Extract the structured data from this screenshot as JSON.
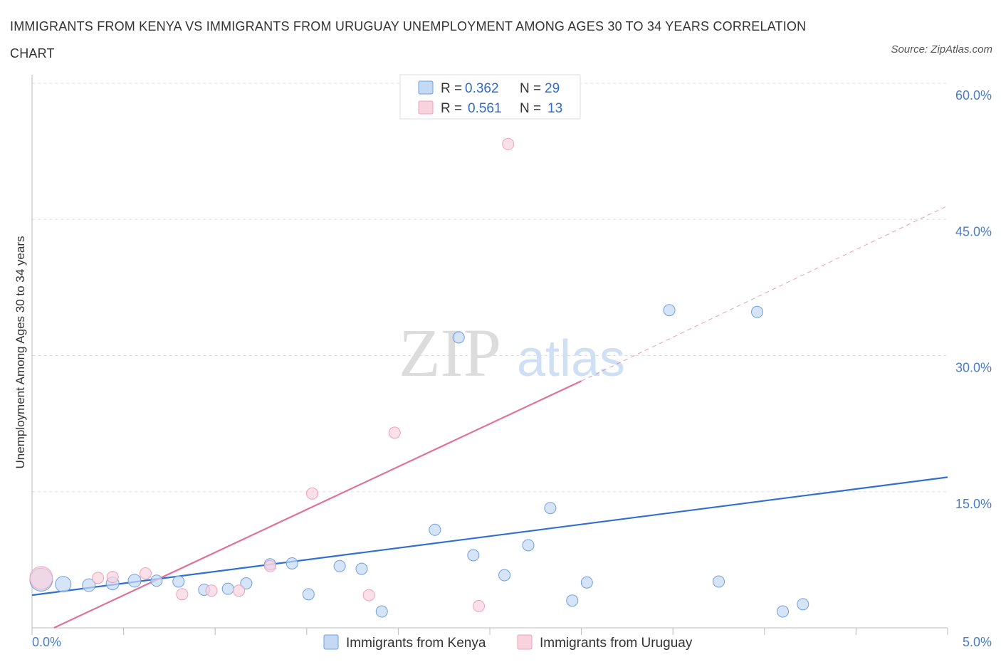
{
  "title": "IMMIGRANTS FROM KENYA VS IMMIGRANTS FROM URUGUAY UNEMPLOYMENT AMONG AGES 30 TO 34 YEARS CORRELATION CHART",
  "source": "Source: ZipAtlas.com",
  "watermark": {
    "zip": "ZIP",
    "atlas": "atlas"
  },
  "chart_data": {
    "type": "scatter",
    "title": "IMMIGRANTS FROM KENYA VS IMMIGRANTS FROM URUGUAY UNEMPLOYMENT AMONG AGES 30 TO 34 YEARS CORRELATION CHART",
    "xlabel": "",
    "ylabel": "Unemployment Among Ages 30 to 34 years",
    "xlim": [
      0,
      5
    ],
    "ylim": [
      0,
      60
    ],
    "x_tick_labels": {
      "min": "0.0%",
      "max": "5.0%"
    },
    "y_ticks": [
      15,
      30,
      45,
      60
    ],
    "y_tick_labels": [
      "15.0%",
      "30.0%",
      "45.0%",
      "60.0%"
    ],
    "grid": true,
    "legend_position": "top-center",
    "series": [
      {
        "name": "Immigrants from Kenya",
        "color": "#6f9fe0",
        "fill": "#c5d9f5",
        "line_color": "#2f6fd0",
        "R": "0.362",
        "N": "29",
        "trend": {
          "x0": 0,
          "y0": 3.6,
          "x1": 5,
          "y1": 16.6,
          "style": "solid"
        },
        "points": [
          {
            "x": 0.05,
            "y": 5.3,
            "r": 16
          },
          {
            "x": 0.17,
            "y": 4.8,
            "r": 11
          },
          {
            "x": 0.31,
            "y": 4.7,
            "r": 9
          },
          {
            "x": 0.44,
            "y": 4.9,
            "r": 9
          },
          {
            "x": 0.56,
            "y": 5.2,
            "r": 9
          },
          {
            "x": 0.68,
            "y": 5.2,
            "r": 8
          },
          {
            "x": 0.8,
            "y": 5.1,
            "r": 8
          },
          {
            "x": 0.94,
            "y": 4.2,
            "r": 8
          },
          {
            "x": 1.07,
            "y": 4.3,
            "r": 8
          },
          {
            "x": 1.17,
            "y": 4.9,
            "r": 8
          },
          {
            "x": 1.3,
            "y": 7.0,
            "r": 8
          },
          {
            "x": 1.42,
            "y": 7.1,
            "r": 8
          },
          {
            "x": 1.51,
            "y": 3.7,
            "r": 8
          },
          {
            "x": 1.68,
            "y": 6.8,
            "r": 8
          },
          {
            "x": 1.8,
            "y": 6.5,
            "r": 8
          },
          {
            "x": 1.91,
            "y": 1.8,
            "r": 8
          },
          {
            "x": 2.2,
            "y": 10.8,
            "r": 8
          },
          {
            "x": 2.33,
            "y": 32.0,
            "r": 8
          },
          {
            "x": 2.41,
            "y": 8.0,
            "r": 8
          },
          {
            "x": 2.58,
            "y": 5.8,
            "r": 8
          },
          {
            "x": 2.71,
            "y": 9.1,
            "r": 8
          },
          {
            "x": 2.83,
            "y": 13.2,
            "r": 8
          },
          {
            "x": 2.95,
            "y": 3.0,
            "r": 8
          },
          {
            "x": 3.03,
            "y": 5.0,
            "r": 8
          },
          {
            "x": 3.48,
            "y": 35.0,
            "r": 8
          },
          {
            "x": 3.75,
            "y": 5.1,
            "r": 8
          },
          {
            "x": 3.96,
            "y": 34.8,
            "r": 8
          },
          {
            "x": 4.1,
            "y": 1.8,
            "r": 8
          },
          {
            "x": 4.21,
            "y": 2.6,
            "r": 8
          }
        ]
      },
      {
        "name": "Immigrants from Uruguay",
        "color": "#f0a0b8",
        "fill": "#f8d3de",
        "line_color": "#e0719a",
        "R": "0.561",
        "N": "13",
        "trend": {
          "x0": 0.12,
          "y0": 0,
          "x1": 3.0,
          "y1": 27.2,
          "style": "solid",
          "dash_to": {
            "x": 5,
            "y": 46.5
          }
        },
        "points": [
          {
            "x": 0.05,
            "y": 5.5,
            "r": 16
          },
          {
            "x": 0.36,
            "y": 5.5,
            "r": 8
          },
          {
            "x": 0.44,
            "y": 5.6,
            "r": 8
          },
          {
            "x": 0.62,
            "y": 6.0,
            "r": 8
          },
          {
            "x": 0.82,
            "y": 3.7,
            "r": 8
          },
          {
            "x": 0.98,
            "y": 4.1,
            "r": 8
          },
          {
            "x": 1.13,
            "y": 4.1,
            "r": 8
          },
          {
            "x": 1.3,
            "y": 6.8,
            "r": 8
          },
          {
            "x": 1.53,
            "y": 14.8,
            "r": 8
          },
          {
            "x": 1.84,
            "y": 3.6,
            "r": 8
          },
          {
            "x": 1.98,
            "y": 21.5,
            "r": 8
          },
          {
            "x": 2.44,
            "y": 2.4,
            "r": 8
          },
          {
            "x": 2.6,
            "y": 53.3,
            "r": 8
          }
        ]
      }
    ]
  },
  "legend": {
    "r_label": "R =",
    "n_label": "N ="
  }
}
